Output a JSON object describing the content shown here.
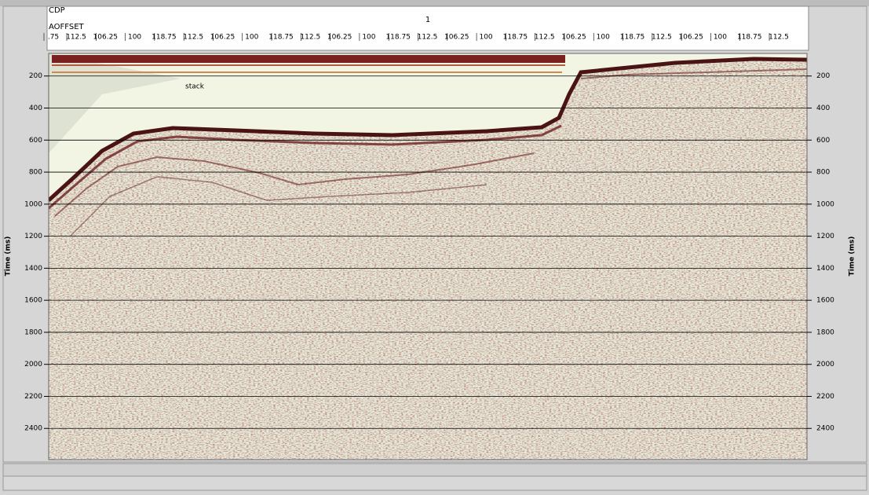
{
  "header": {
    "cdp_label": "CDP",
    "offset_label": "AOFFSET",
    "cdp_value": "1",
    "offsets": [
      ".75",
      "112.5",
      "106.25",
      "100",
      "118.75",
      "112.5",
      "106.25",
      "100",
      "118.75",
      "112.5",
      "106.25",
      "100",
      "118.75",
      "112.5",
      "106.25",
      "100",
      "118.75",
      "112.5",
      "106.25",
      "100",
      "118.75",
      "112.5",
      "106.25",
      "100",
      "118.75",
      "112.5"
    ]
  },
  "plot": {
    "annotation": "stack",
    "y_label": "Time (ms)",
    "ylim": [
      59,
      2595
    ],
    "yticks": [
      200,
      400,
      600,
      800,
      1000,
      1200,
      1400,
      1600,
      1800,
      2000,
      2200,
      2400
    ]
  }
}
